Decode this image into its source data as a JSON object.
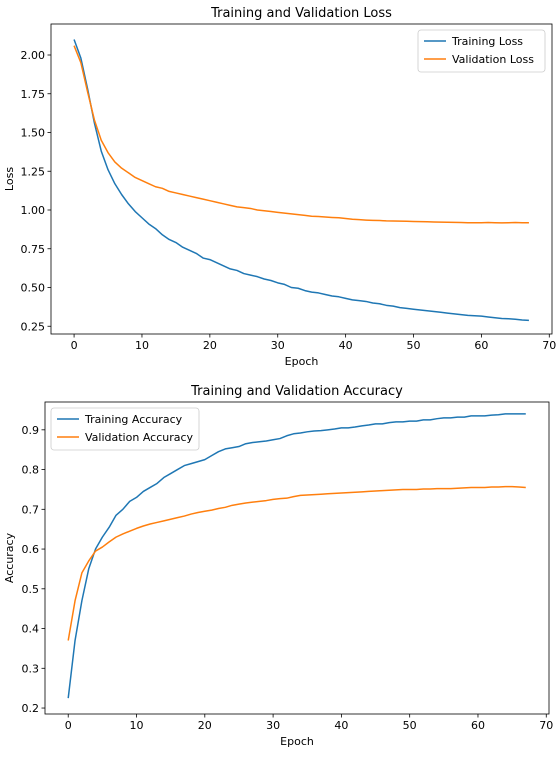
{
  "chart_data": [
    {
      "type": "line",
      "title": "Training and Validation Loss",
      "xlabel": "Epoch",
      "ylabel": "Loss",
      "xlim": [
        -3.4,
        70.4
      ],
      "ylim": [
        0.2,
        2.2
      ],
      "xticks": [
        0,
        10,
        20,
        30,
        40,
        50,
        60,
        70
      ],
      "yticks": [
        0.25,
        0.5,
        0.75,
        1.0,
        1.25,
        1.5,
        1.75,
        2.0
      ],
      "ytick_labels": [
        "0.25",
        "0.50",
        "0.75",
        "1.00",
        "1.25",
        "1.50",
        "1.75",
        "2.00"
      ],
      "grid": false,
      "legend_position": "top-right",
      "x": [
        0,
        1,
        2,
        3,
        4,
        5,
        6,
        7,
        8,
        9,
        10,
        11,
        12,
        13,
        14,
        15,
        16,
        17,
        18,
        19,
        20,
        21,
        22,
        23,
        24,
        25,
        26,
        27,
        28,
        29,
        30,
        31,
        32,
        33,
        34,
        35,
        36,
        37,
        38,
        39,
        40,
        41,
        42,
        43,
        44,
        45,
        46,
        47,
        48,
        49,
        50,
        51,
        52,
        53,
        54,
        55,
        56,
        57,
        58,
        59,
        60,
        61,
        62,
        63,
        64,
        65,
        66,
        67
      ],
      "series": [
        {
          "name": "Training Loss",
          "color": "#1f77b4",
          "values": [
            2.1,
            1.98,
            1.78,
            1.56,
            1.38,
            1.26,
            1.17,
            1.1,
            1.04,
            0.99,
            0.95,
            0.91,
            0.88,
            0.84,
            0.81,
            0.79,
            0.76,
            0.74,
            0.72,
            0.69,
            0.68,
            0.66,
            0.64,
            0.62,
            0.61,
            0.59,
            0.58,
            0.57,
            0.555,
            0.545,
            0.53,
            0.52,
            0.5,
            0.495,
            0.48,
            0.47,
            0.465,
            0.455,
            0.445,
            0.44,
            0.43,
            0.42,
            0.415,
            0.41,
            0.4,
            0.395,
            0.385,
            0.38,
            0.37,
            0.365,
            0.36,
            0.355,
            0.35,
            0.345,
            0.34,
            0.335,
            0.33,
            0.325,
            0.32,
            0.318,
            0.315,
            0.31,
            0.305,
            0.3,
            0.298,
            0.295,
            0.29,
            0.288
          ]
        },
        {
          "name": "Validation Loss",
          "color": "#ff7f0e",
          "values": [
            2.06,
            1.95,
            1.76,
            1.58,
            1.45,
            1.37,
            1.31,
            1.27,
            1.24,
            1.21,
            1.19,
            1.17,
            1.15,
            1.14,
            1.12,
            1.11,
            1.1,
            1.09,
            1.08,
            1.07,
            1.06,
            1.05,
            1.04,
            1.03,
            1.02,
            1.015,
            1.01,
            1.0,
            0.995,
            0.99,
            0.985,
            0.98,
            0.975,
            0.97,
            0.965,
            0.96,
            0.958,
            0.955,
            0.952,
            0.95,
            0.945,
            0.94,
            0.938,
            0.935,
            0.933,
            0.932,
            0.93,
            0.929,
            0.928,
            0.927,
            0.926,
            0.925,
            0.924,
            0.923,
            0.922,
            0.921,
            0.92,
            0.919,
            0.918,
            0.918,
            0.918,
            0.919,
            0.918,
            0.917,
            0.918,
            0.919,
            0.918,
            0.918
          ]
        }
      ]
    },
    {
      "type": "line",
      "title": "Training and Validation Accuracy",
      "xlabel": "Epoch",
      "ylabel": "Accuracy",
      "xlim": [
        -3.4,
        70.4
      ],
      "ylim": [
        0.185,
        0.97
      ],
      "xticks": [
        0,
        10,
        20,
        30,
        40,
        50,
        60,
        70
      ],
      "yticks": [
        0.2,
        0.3,
        0.4,
        0.5,
        0.6,
        0.7,
        0.8,
        0.9
      ],
      "ytick_labels": [
        "0.2",
        "0.3",
        "0.4",
        "0.5",
        "0.6",
        "0.7",
        "0.8",
        "0.9"
      ],
      "grid": false,
      "legend_position": "top-left",
      "x": [
        0,
        1,
        2,
        3,
        4,
        5,
        6,
        7,
        8,
        9,
        10,
        11,
        12,
        13,
        14,
        15,
        16,
        17,
        18,
        19,
        20,
        21,
        22,
        23,
        24,
        25,
        26,
        27,
        28,
        29,
        30,
        31,
        32,
        33,
        34,
        35,
        36,
        37,
        38,
        39,
        40,
        41,
        42,
        43,
        44,
        45,
        46,
        47,
        48,
        49,
        50,
        51,
        52,
        53,
        54,
        55,
        56,
        57,
        58,
        59,
        60,
        61,
        62,
        63,
        64,
        65,
        66,
        67
      ],
      "series": [
        {
          "name": "Training Accuracy",
          "color": "#1f77b4",
          "values": [
            0.225,
            0.37,
            0.47,
            0.55,
            0.6,
            0.63,
            0.655,
            0.685,
            0.7,
            0.72,
            0.73,
            0.745,
            0.755,
            0.765,
            0.78,
            0.79,
            0.8,
            0.81,
            0.815,
            0.82,
            0.825,
            0.835,
            0.845,
            0.852,
            0.855,
            0.858,
            0.865,
            0.868,
            0.87,
            0.872,
            0.875,
            0.878,
            0.885,
            0.89,
            0.892,
            0.895,
            0.897,
            0.898,
            0.9,
            0.902,
            0.905,
            0.905,
            0.907,
            0.91,
            0.912,
            0.915,
            0.915,
            0.918,
            0.92,
            0.92,
            0.922,
            0.922,
            0.925,
            0.925,
            0.928,
            0.93,
            0.93,
            0.932,
            0.932,
            0.935,
            0.935,
            0.935,
            0.937,
            0.938,
            0.94,
            0.94,
            0.94,
            0.94
          ]
        },
        {
          "name": "Validation Accuracy",
          "color": "#ff7f0e",
          "values": [
            0.37,
            0.47,
            0.54,
            0.57,
            0.595,
            0.605,
            0.618,
            0.63,
            0.638,
            0.645,
            0.652,
            0.658,
            0.663,
            0.667,
            0.671,
            0.675,
            0.679,
            0.683,
            0.688,
            0.692,
            0.695,
            0.698,
            0.702,
            0.705,
            0.71,
            0.713,
            0.716,
            0.718,
            0.72,
            0.722,
            0.725,
            0.727,
            0.728,
            0.732,
            0.735,
            0.736,
            0.737,
            0.738,
            0.739,
            0.74,
            0.741,
            0.742,
            0.743,
            0.744,
            0.745,
            0.746,
            0.747,
            0.748,
            0.749,
            0.75,
            0.75,
            0.75,
            0.751,
            0.751,
            0.752,
            0.752,
            0.752,
            0.753,
            0.754,
            0.755,
            0.755,
            0.755,
            0.756,
            0.756,
            0.757,
            0.757,
            0.756,
            0.755
          ]
        }
      ]
    }
  ]
}
